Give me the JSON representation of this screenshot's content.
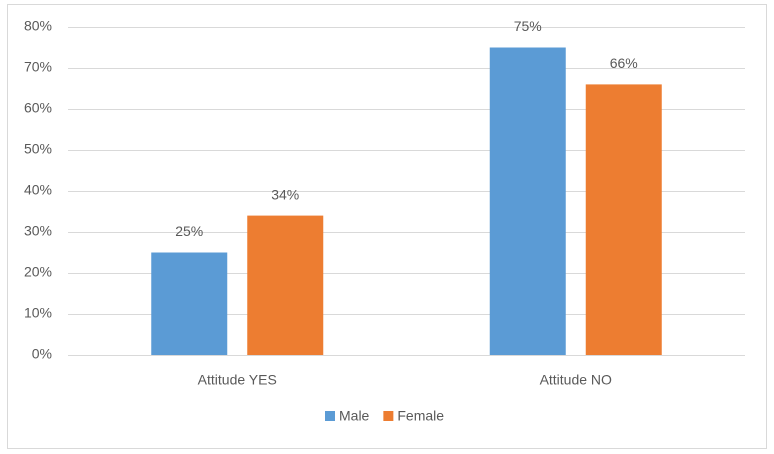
{
  "chart_data": {
    "type": "bar",
    "categories": [
      "Attitude YES",
      "Attitude NO"
    ],
    "series": [
      {
        "name": "Male",
        "color": "#5b9bd5",
        "values": [
          25,
          75
        ],
        "value_labels": [
          "25%",
          "75%"
        ]
      },
      {
        "name": "Female",
        "color": "#ed7d31",
        "values": [
          34,
          66
        ],
        "value_labels": [
          "34%",
          "66%"
        ]
      }
    ],
    "ylim": [
      0,
      80
    ],
    "yticks": [
      {
        "value": 0,
        "label": "0%"
      },
      {
        "value": 10,
        "label": "10%"
      },
      {
        "value": 20,
        "label": "20%"
      },
      {
        "value": 30,
        "label": "30%"
      },
      {
        "value": 40,
        "label": "40%"
      },
      {
        "value": 50,
        "label": "50%"
      },
      {
        "value": 60,
        "label": "60%"
      },
      {
        "value": 70,
        "label": "70%"
      },
      {
        "value": 80,
        "label": "80%"
      }
    ],
    "grid": true,
    "legend": "bottom"
  }
}
